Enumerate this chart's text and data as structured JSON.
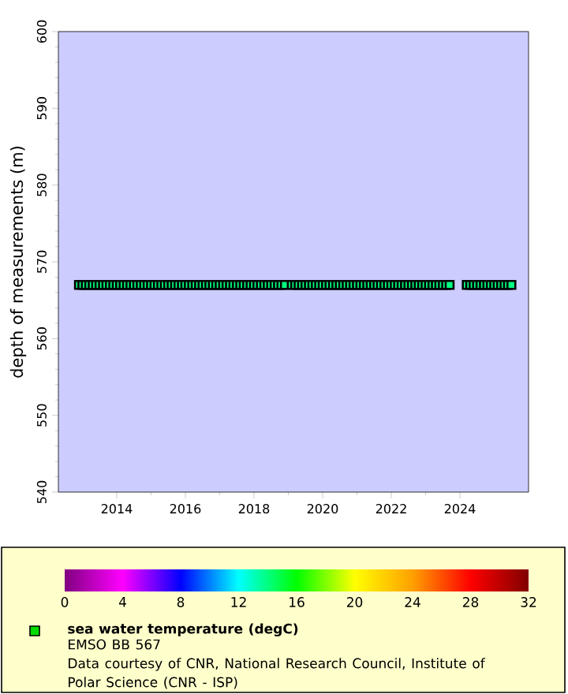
{
  "chart_data": {
    "type": "scatter",
    "ylabel": "depth of measurements (m)",
    "xlim": [
      2012.3,
      2026.0
    ],
    "xticks": [
      2014,
      2016,
      2018,
      2020,
      2022,
      2024
    ],
    "ylim": [
      540,
      600
    ],
    "yticks": [
      540,
      550,
      560,
      570,
      580,
      590,
      600
    ],
    "clim": [
      0,
      32
    ],
    "cticks": [
      0,
      4,
      8,
      12,
      16,
      20,
      24,
      28,
      32
    ],
    "marker": "square",
    "legend": "bottom",
    "annotations": [
      "EMSO BB 567",
      "Data courtesy of CNR, National Research Council, Institute of Polar Science (CNR - ISP)"
    ],
    "x": [
      2012.9,
      2013.0,
      2013.1,
      2013.2,
      2013.3,
      2013.4,
      2013.5,
      2013.6,
      2013.7,
      2013.8,
      2013.9,
      2014.0,
      2014.1,
      2014.2,
      2014.3,
      2014.4,
      2014.5,
      2014.6,
      2014.7,
      2014.8,
      2014.9,
      2015.0,
      2015.1,
      2015.2,
      2015.3,
      2015.4,
      2015.5,
      2015.6,
      2015.7,
      2015.8,
      2015.9,
      2016.0,
      2016.1,
      2016.2,
      2016.3,
      2016.4,
      2016.5,
      2016.6,
      2016.7,
      2016.8,
      2016.9,
      2017.0,
      2017.1,
      2017.2,
      2017.3,
      2017.4,
      2017.5,
      2017.6,
      2017.7,
      2017.8,
      2017.9,
      2018.0,
      2018.1,
      2018.2,
      2018.3,
      2018.4,
      2018.5,
      2018.6,
      2018.7,
      2018.8,
      2018.9,
      2019.1,
      2019.2,
      2019.3,
      2019.4,
      2019.5,
      2019.6,
      2019.7,
      2019.8,
      2019.9,
      2020.0,
      2020.1,
      2020.2,
      2020.3,
      2020.4,
      2020.5,
      2020.6,
      2020.7,
      2020.8,
      2020.9,
      2021.0,
      2021.1,
      2021.2,
      2021.3,
      2021.4,
      2021.5,
      2021.6,
      2021.7,
      2021.8,
      2021.9,
      2022.0,
      2022.1,
      2022.2,
      2022.3,
      2022.4,
      2022.5,
      2022.6,
      2022.7,
      2022.8,
      2022.9,
      2023.0,
      2023.1,
      2023.2,
      2023.3,
      2023.4,
      2023.5,
      2023.6,
      2023.7,
      2024.2,
      2024.3,
      2024.4,
      2024.5,
      2024.6,
      2024.7,
      2024.8,
      2024.9,
      2025.0,
      2025.1,
      2025.2,
      2025.3,
      2025.4,
      2025.5
    ],
    "series": [
      {
        "name": "sea water temperature (degC)",
        "values": [
          567,
          567,
          567,
          567,
          567,
          567,
          567,
          567,
          567,
          567,
          567,
          567,
          567,
          567,
          567,
          567,
          567,
          567,
          567,
          567,
          567,
          567,
          567,
          567,
          567,
          567,
          567,
          567,
          567,
          567,
          567,
          567,
          567,
          567,
          567,
          567,
          567,
          567,
          567,
          567,
          567,
          567,
          567,
          567,
          567,
          567,
          567,
          567,
          567,
          567,
          567,
          567,
          567,
          567,
          567,
          567,
          567,
          567,
          567,
          567,
          567,
          567,
          567,
          567,
          567,
          567,
          567,
          567,
          567,
          567,
          567,
          567,
          567,
          567,
          567,
          567,
          567,
          567,
          567,
          567,
          567,
          567,
          567,
          567,
          567,
          567,
          567,
          567,
          567,
          567,
          567,
          567,
          567,
          567,
          567,
          567,
          567,
          567,
          567,
          567,
          567,
          567,
          567,
          567,
          567,
          567,
          567,
          567,
          567,
          567,
          567,
          567,
          567,
          567,
          567,
          567,
          567,
          567,
          567,
          567,
          567,
          567
        ],
        "cvalues": [
          14,
          14,
          14,
          14,
          14,
          14,
          14,
          14,
          14,
          14,
          14,
          14,
          14,
          14,
          14,
          14,
          14,
          14,
          14,
          14,
          14,
          14,
          14,
          14,
          14,
          14,
          14,
          14,
          14,
          14,
          14,
          14,
          14,
          14,
          14,
          14,
          14,
          14,
          14,
          14,
          14,
          14,
          14,
          14,
          14,
          14,
          14,
          14,
          14,
          14,
          14,
          14,
          14,
          14,
          14,
          14,
          14,
          14,
          14,
          14,
          14,
          14,
          14,
          14,
          14,
          14,
          14,
          14,
          14,
          14,
          14,
          14,
          14,
          14,
          14,
          14,
          14,
          14,
          14,
          14,
          14,
          14,
          14,
          14,
          14,
          14,
          14,
          14,
          14,
          14,
          14,
          14,
          14,
          14,
          14,
          14,
          14,
          14,
          14,
          14,
          14,
          14,
          14,
          14,
          14,
          14,
          14,
          14,
          14,
          14,
          14,
          14,
          14,
          14,
          14,
          14,
          14,
          14,
          14,
          14,
          14,
          14
        ]
      }
    ]
  }
}
